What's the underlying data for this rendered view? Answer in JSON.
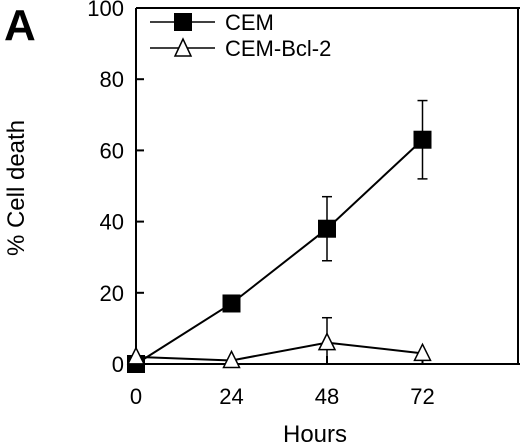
{
  "panel_label": "A",
  "chart_data": {
    "type": "line",
    "xlabel": "Hours",
    "ylabel": "% Cell death",
    "x_ticks": [
      0,
      24,
      48,
      72
    ],
    "y_ticks": [
      0,
      20,
      40,
      60,
      80,
      100
    ],
    "xlim": [
      0,
      96
    ],
    "ylim": [
      0,
      100
    ],
    "grid": false,
    "legend_position": "top-left",
    "series": [
      {
        "name": "CEM",
        "marker": "filled-square",
        "color": "#000000",
        "x": [
          0,
          24,
          48,
          72
        ],
        "y": [
          0,
          17,
          38,
          63
        ],
        "error": [
          0,
          2,
          9,
          11
        ]
      },
      {
        "name": "CEM-Bcl-2",
        "marker": "open-triangle",
        "color": "#000000",
        "x": [
          0,
          24,
          48,
          72
        ],
        "y": [
          2,
          1,
          6,
          3
        ],
        "error": [
          0,
          0,
          7,
          0
        ]
      }
    ]
  }
}
